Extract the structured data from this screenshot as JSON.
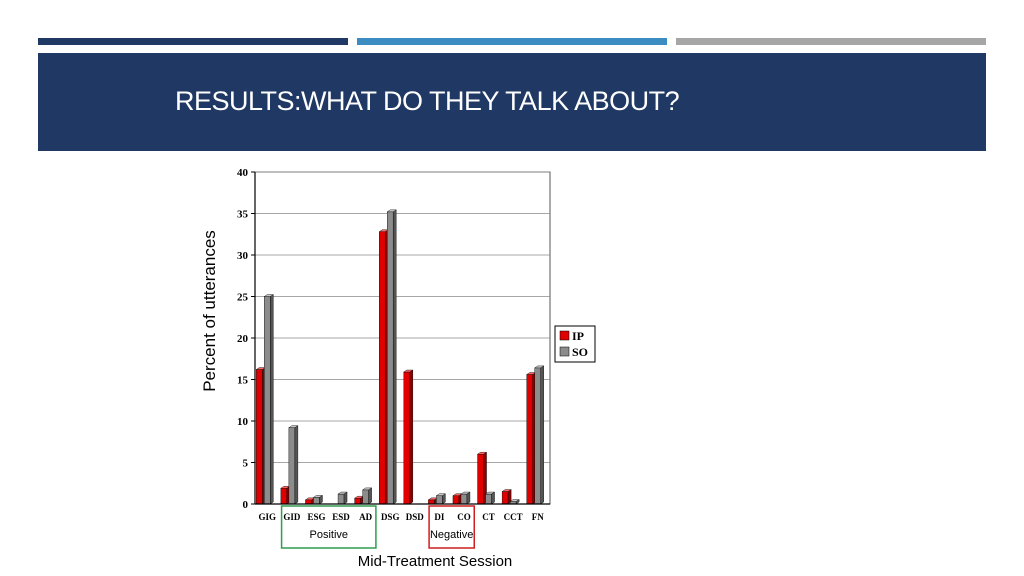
{
  "slide": {
    "title": "RESULTS:WHAT DO THEY TALK ABOUT?"
  },
  "colors": {
    "banner": "#1f3864",
    "bar_dark": "#1f3864",
    "bar_blue": "#3a8cc1",
    "bar_gray": "#a6a6a6",
    "ip": "#e00000",
    "so": "#8c8c8c",
    "positive_box": "#2e9e4f",
    "negative_box": "#cc1f1f"
  },
  "chart_data": {
    "type": "bar",
    "categories": [
      "GIG",
      "GID",
      "ESG",
      "ESD",
      "AD",
      "DSG",
      "DSD",
      "DI",
      "CO",
      "CT",
      "CCT",
      "FN"
    ],
    "series": [
      {
        "name": "IP",
        "values": [
          16.2,
          1.9,
          0.5,
          0,
          0.7,
          32.8,
          15.9,
          0.5,
          1.0,
          6.0,
          1.5,
          15.6
        ]
      },
      {
        "name": "SO",
        "values": [
          25.0,
          9.2,
          0.8,
          1.2,
          1.7,
          35.2,
          0,
          1.0,
          1.2,
          1.2,
          0.3,
          16.4
        ]
      }
    ],
    "yticks": [
      "0",
      "5",
      "10",
      "15",
      "20",
      "25",
      "30",
      "35",
      "40"
    ],
    "ylim": [
      0,
      40
    ],
    "ylabel": "Percent of utterances",
    "xlabel": "Mid-Treatment Session",
    "grid": true,
    "legend": "right",
    "groups": [
      {
        "label": "Positive",
        "from": "GID",
        "to": "AD"
      },
      {
        "label": "Negative",
        "from": "DI",
        "to": "CO"
      }
    ]
  }
}
